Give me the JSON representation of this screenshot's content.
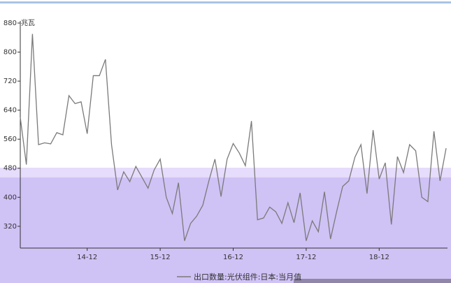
{
  "chart_data": {
    "type": "line",
    "y_unit": "兆瓦",
    "categories": [
      null,
      null,
      null,
      null,
      null,
      null,
      null,
      null,
      null,
      null,
      null,
      "14-12",
      null,
      null,
      null,
      null,
      null,
      null,
      null,
      null,
      null,
      null,
      null,
      "15-12",
      null,
      null,
      null,
      null,
      null,
      null,
      null,
      null,
      null,
      null,
      null,
      "16-12",
      null,
      null,
      null,
      null,
      null,
      null,
      null,
      null,
      null,
      null,
      null,
      "17-12",
      null,
      null,
      null,
      null,
      null,
      null,
      null,
      null,
      null,
      null,
      null,
      "18-12",
      null,
      null,
      null,
      null,
      null,
      null,
      null,
      null,
      null,
      null,
      null
    ],
    "series": [
      {
        "name": "出口数量:光伏组件:日本:当月值",
        "color": "#7a7a7a",
        "values": [
          620,
          490,
          850,
          545,
          550,
          547,
          578,
          572,
          680,
          658,
          663,
          575,
          735,
          735,
          780,
          545,
          420,
          470,
          443,
          485,
          455,
          425,
          475,
          505,
          400,
          355,
          440,
          280,
          328,
          348,
          378,
          445,
          505,
          402,
          505,
          548,
          522,
          487,
          610,
          338,
          343,
          373,
          360,
          328,
          385,
          330,
          412,
          280,
          335,
          305,
          415,
          285,
          360,
          430,
          445,
          510,
          545,
          410,
          585,
          450,
          495,
          325,
          512,
          468,
          545,
          528,
          400,
          388,
          582,
          445,
          535
        ]
      }
    ],
    "ylim": [
      260,
      880
    ],
    "yticks": [
      320,
      400,
      480,
      560,
      640,
      720,
      800,
      880
    ],
    "grid": false
  }
}
